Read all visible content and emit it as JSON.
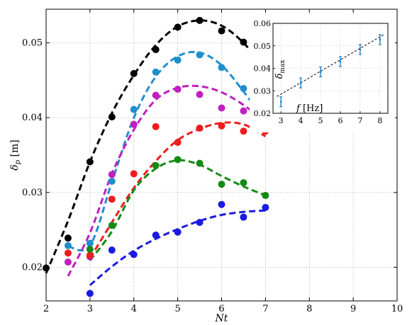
{
  "chart_data": [
    {
      "type": "scatter",
      "panel": "main",
      "xlabel": "Nt",
      "ylabel": "δ_p [m]",
      "xlim": [
        2,
        10
      ],
      "ylim": [
        0.0155,
        0.0545
      ],
      "xticks": [
        2,
        3,
        4,
        5,
        6,
        7,
        8,
        9,
        10
      ],
      "yticks": [
        0.02,
        0.03,
        0.04,
        0.05
      ],
      "xtick_labels": [
        "2",
        "3",
        "4",
        "5",
        "6",
        "7",
        "8",
        "9",
        "10"
      ],
      "ytick_labels": [
        "0.02",
        "0.03",
        "0.04",
        "0.05"
      ],
      "grid": true,
      "series": [
        {
          "color": "#000000",
          "points": {
            "x": [
              2,
              2.5,
              3,
              3.5,
              4,
              4.5,
              5,
              5.5,
              6,
              6.5,
              7
            ],
            "y": [
              0.0199,
              0.0239,
              0.0341,
              0.0401,
              0.0459,
              0.0491,
              0.0521,
              0.053,
              0.0516,
              0.0501,
              0.0441
            ]
          },
          "fit": {
            "x": [
              2,
              2.5,
              3,
              3.5,
              4,
              4.5,
              5,
              5.5,
              6,
              6.5,
              7
            ],
            "y": [
              0.0192,
              0.0262,
              0.0341,
              0.0406,
              0.0457,
              0.0497,
              0.0522,
              0.053,
              0.0523,
              0.05,
              0.0465
            ]
          }
        },
        {
          "color": "#1f8fcc",
          "points": {
            "x": [
              2.5,
              3,
              3.5,
              4,
              4.5,
              5,
              5.5,
              6,
              6.5,
              7
            ],
            "y": [
              0.0229,
              0.0232,
              0.0315,
              0.0411,
              0.0461,
              0.0477,
              0.0484,
              0.0467,
              0.0439,
              0.0414
            ]
          },
          "fit": {
            "x": [
              2.5,
              3,
              3.5,
              4,
              4.5,
              5,
              5.5,
              6,
              6.5,
              7
            ],
            "y": [
              0.0228,
              0.0229,
              0.0314,
              0.04,
              0.0455,
              0.0482,
              0.0487,
              0.047,
              0.0435,
              0.0395
            ]
          }
        },
        {
          "color": "#c020c0",
          "points": {
            "x": [
              2.5,
              3,
              3.5,
              4,
              4.5,
              5,
              5.5,
              6,
              6.5,
              7
            ],
            "y": [
              0.0207,
              0.0214,
              0.0324,
              0.0391,
              0.043,
              0.0438,
              0.0431,
              0.0413,
              0.0409,
              0.0408
            ]
          },
          "fit": {
            "x": [
              2.5,
              3,
              3.5,
              4,
              4.5,
              5,
              5.5,
              6,
              6.5,
              7
            ],
            "y": [
              0.0188,
              0.0246,
              0.0325,
              0.0384,
              0.0424,
              0.044,
              0.0442,
              0.0434,
              0.0417,
              0.0394
            ]
          }
        },
        {
          "color": "#ee1c1c",
          "points": {
            "x": [
              2.5,
              3,
              3.5,
              4,
              4.5,
              5,
              5.5,
              6,
              6.5,
              7
            ],
            "y": [
              0.0219,
              0.0216,
              0.0291,
              0.0325,
              0.0388,
              0.0367,
              0.0386,
              0.0389,
              0.0382,
              0.0382
            ]
          },
          "fit": {
            "x": [
              3,
              3.5,
              4,
              4.5,
              5,
              5.5,
              6,
              6.5,
              7
            ],
            "y": [
              0.0212,
              0.026,
              0.0306,
              0.0342,
              0.037,
              0.0385,
              0.0393,
              0.0391,
              0.0375
            ]
          }
        },
        {
          "color": "#148a14",
          "points": {
            "x": [
              3,
              3.5,
              4.5,
              5,
              5.5,
              6,
              6.5,
              7
            ],
            "y": [
              0.0224,
              0.0256,
              0.0336,
              0.0344,
              0.0339,
              0.0311,
              0.0313,
              0.0296
            ]
          },
          "fit": {
            "x": [
              3,
              3.5,
              4,
              4.5,
              5,
              5.5,
              6,
              6.5,
              7
            ],
            "y": [
              0.0209,
              0.0248,
              0.0303,
              0.0332,
              0.0343,
              0.0337,
              0.0322,
              0.0308,
              0.0296
            ]
          }
        },
        {
          "color": "#1a1ae0",
          "points": {
            "x": [
              3,
              3.5,
              4,
              4.5,
              5,
              5.5,
              6,
              6.5,
              7
            ],
            "y": [
              0.0165,
              0.0223,
              0.0217,
              0.0243,
              0.0247,
              0.026,
              0.0284,
              0.0267,
              0.028
            ]
          },
          "fit": {
            "x": [
              3,
              3.5,
              4,
              4.5,
              5,
              5.5,
              6,
              6.5,
              7
            ],
            "y": [
              0.0176,
              0.0201,
              0.0222,
              0.0238,
              0.0251,
              0.0262,
              0.027,
              0.0274,
              0.0276
            ]
          }
        }
      ]
    },
    {
      "type": "scatter",
      "panel": "inset",
      "xlabel": "f [Hz]",
      "ylabel": "δ_max",
      "xlim": [
        2.6,
        8.4
      ],
      "ylim": [
        0.02,
        0.06
      ],
      "xticks": [
        3,
        4,
        5,
        6,
        7,
        8
      ],
      "yticks": [
        0.02,
        0.03,
        0.04,
        0.05,
        0.06
      ],
      "xtick_labels": [
        "3",
        "4",
        "5",
        "6",
        "7",
        "8"
      ],
      "ytick_labels": [
        "0.02",
        "0.03",
        "0.04",
        "0.05",
        "0.06"
      ],
      "grid": true,
      "series": [
        {
          "color": "#1f7fc0",
          "points": {
            "x": [
              3,
              4,
              5,
              6,
              7,
              8
            ],
            "y": [
              0.0251,
              0.0335,
              0.0384,
              0.043,
              0.0484,
              0.0528
            ],
            "err": [
              0.0022,
              0.0022,
              0.0022,
              0.0022,
              0.0022,
              0.0022
            ]
          },
          "fit": {
            "x": [
              2.8,
              8.2
            ],
            "y": [
              0.0275,
              0.055
            ],
            "color": "#000000"
          }
        }
      ]
    }
  ]
}
